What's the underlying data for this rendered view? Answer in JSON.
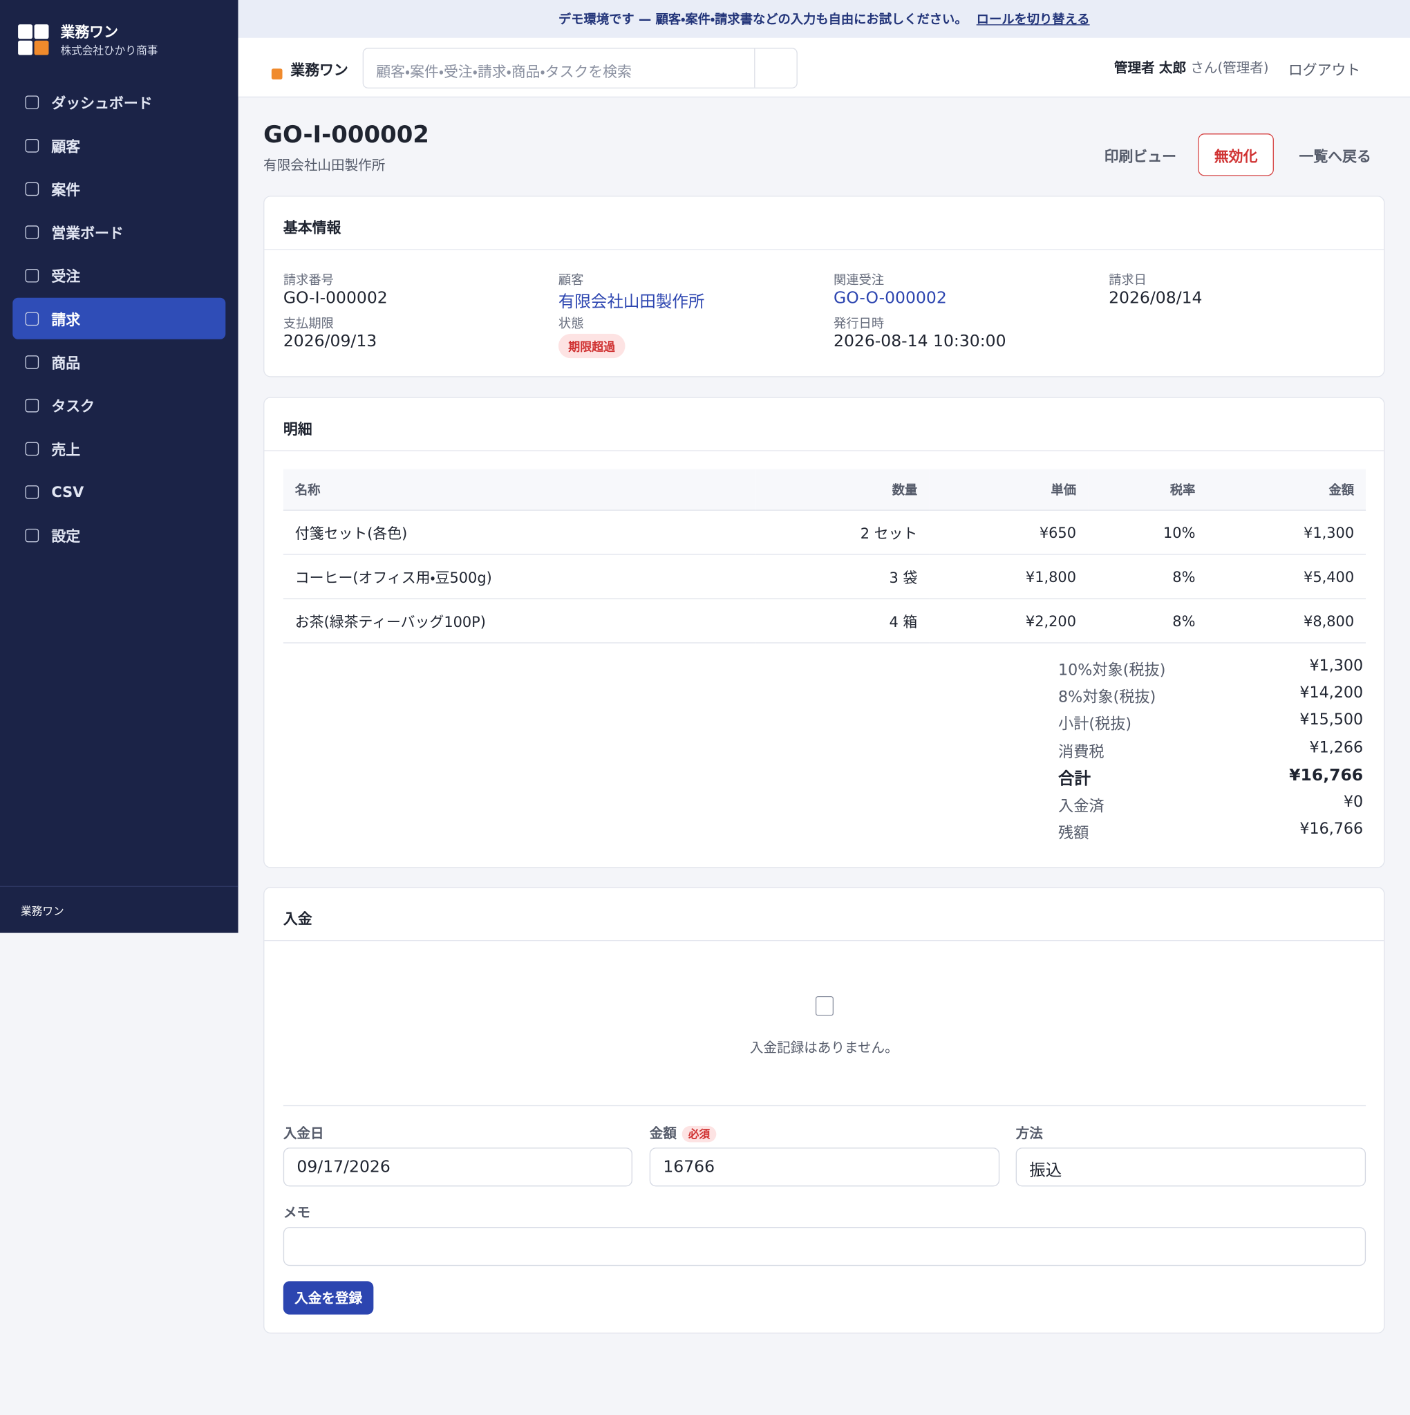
{
  "banner": {
    "text": "デモ環境です — 顧客・案件・請求書などの入力も自由にお試しください。",
    "link": "ロールを切り替える"
  },
  "sidebar": {
    "brand": "業務ワン",
    "company": "株式会社ひかり商事",
    "nav": [
      "ダッシュボード",
      "顧客",
      "案件",
      "営業ボード",
      "受注",
      "請求",
      "商品",
      "タスク",
      "売上",
      "CSV",
      "設定"
    ],
    "active": 5,
    "footer": "業務ワン"
  },
  "header": {
    "brand": "業務ワン",
    "search_placeholder": "顧客・案件・受注・請求・商品・タスクを検索",
    "user_role": "管理者",
    "user_name": "太郎",
    "user_suffix": "さん(管理者)",
    "logout": "ログアウト"
  },
  "page": {
    "title": "GO-I-000002",
    "subtitle": "有限会社山田製作所",
    "actions": {
      "print": "印刷ビュー",
      "void": "無効化",
      "back": "一覧へ戻る"
    }
  },
  "basic_info": {
    "heading": "基本情報",
    "fields": [
      {
        "label": "請求番号",
        "value": "GO-I-000002"
      },
      {
        "label": "顧客",
        "value": "有限会社山田製作所",
        "link": true
      },
      {
        "label": "関連受注",
        "value": "GO-O-000002",
        "link": true
      },
      {
        "label": "請求日",
        "value": "2026/08/14"
      },
      {
        "label": "支払期限",
        "value": "2026/09/13"
      },
      {
        "label": "状態",
        "value": "期限超過",
        "badge": true
      },
      {
        "label": "発行日時",
        "value": "2026-08-14 10:30:00"
      }
    ]
  },
  "details": {
    "heading": "明細",
    "columns": [
      "名称",
      "数量",
      "単価",
      "税率",
      "金額"
    ],
    "rows": [
      [
        "付箋セット(各色)",
        "2 セット",
        "¥650",
        "10%",
        "¥1,300"
      ],
      [
        "コーヒー(オフィス用・豆500g)",
        "3 袋",
        "¥1,800",
        "8%",
        "¥5,400"
      ],
      [
        "お茶(緑茶ティーバッグ100P)",
        "4 箱",
        "¥2,200",
        "8%",
        "¥8,800"
      ]
    ],
    "summary": [
      {
        "label": "10%対象(税抜)",
        "value": "¥1,300"
      },
      {
        "label": "8%対象(税抜)",
        "value": "¥14,200"
      },
      {
        "label": "小計(税抜)",
        "value": "¥15,500"
      },
      {
        "label": "消費税",
        "value": "¥1,266"
      },
      {
        "label": "合計",
        "value": "¥16,766",
        "bold": true
      },
      {
        "label": "入金済",
        "value": "¥0"
      },
      {
        "label": "残額",
        "value": "¥16,766"
      }
    ]
  },
  "payment": {
    "heading": "入金",
    "empty": "入金記録はありません。",
    "date_label": "入金日",
    "date_value": "09/17/2026",
    "amount_label": "金額",
    "required": "必須",
    "amount_value": "16766",
    "method_label": "方法",
    "method_value": "振込",
    "memo_label": "メモ",
    "submit": "入金を登録"
  }
}
